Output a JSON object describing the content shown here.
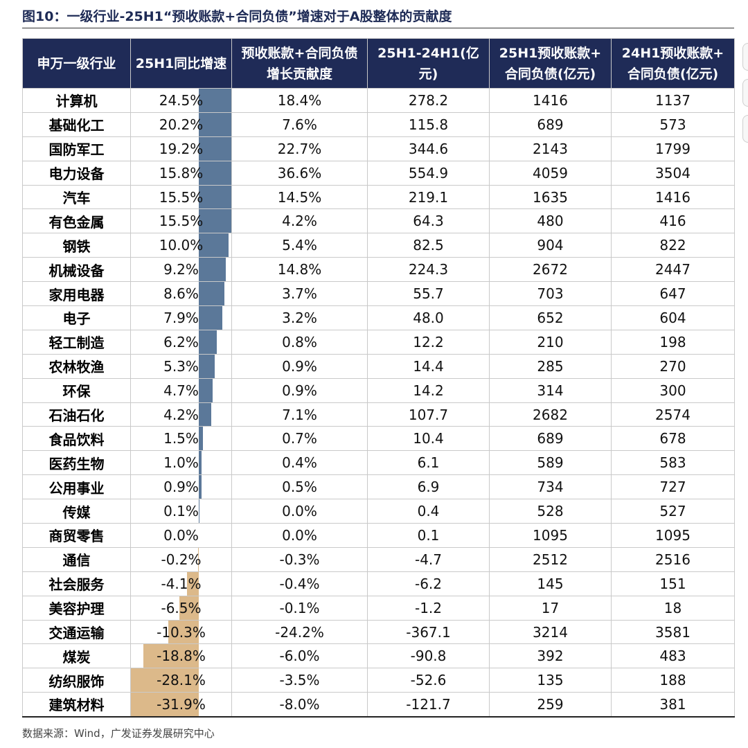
{
  "title": "图10：一级行业-25H1“预收账款+合同负债”增速对于A股整体的贡献度",
  "source": "数据来源：Wind，广发证券发展研究中心",
  "colors": {
    "header_bg": "#1f2b57",
    "bar_positive": "#5b7899",
    "bar_negative": "#dcb98a"
  },
  "headers": [
    [
      "申万一级行业"
    ],
    [
      "25H1同比增速"
    ],
    [
      "预收账款+合同负债",
      "增长贡献度"
    ],
    [
      "25H1-24H1(亿",
      "元)"
    ],
    [
      "25H1预收账款+",
      "合同负债(亿元)"
    ],
    [
      "24H1预收账款+",
      "合同负债(亿元)"
    ]
  ],
  "rows": [
    {
      "industry": "计算机",
      "growth": "24.5%",
      "contrib": "18.4%",
      "diff": "278.2",
      "v25": "1416",
      "v24": "1137"
    },
    {
      "industry": "基础化工",
      "growth": "20.2%",
      "contrib": "7.6%",
      "diff": "115.8",
      "v25": "689",
      "v24": "573"
    },
    {
      "industry": "国防军工",
      "growth": "19.2%",
      "contrib": "22.7%",
      "diff": "344.6",
      "v25": "2143",
      "v24": "1799"
    },
    {
      "industry": "电力设备",
      "growth": "15.8%",
      "contrib": "36.6%",
      "diff": "554.9",
      "v25": "4059",
      "v24": "3504"
    },
    {
      "industry": "汽车",
      "growth": "15.5%",
      "contrib": "14.5%",
      "diff": "219.1",
      "v25": "1635",
      "v24": "1416"
    },
    {
      "industry": "有色金属",
      "growth": "15.5%",
      "contrib": "4.2%",
      "diff": "64.3",
      "v25": "480",
      "v24": "416"
    },
    {
      "industry": "钢铁",
      "growth": "10.0%",
      "contrib": "5.4%",
      "diff": "82.5",
      "v25": "904",
      "v24": "822"
    },
    {
      "industry": "机械设备",
      "growth": "9.2%",
      "contrib": "14.8%",
      "diff": "224.3",
      "v25": "2672",
      "v24": "2447"
    },
    {
      "industry": "家用电器",
      "growth": "8.6%",
      "contrib": "3.7%",
      "diff": "55.7",
      "v25": "703",
      "v24": "647"
    },
    {
      "industry": "电子",
      "growth": "7.9%",
      "contrib": "3.2%",
      "diff": "48.0",
      "v25": "652",
      "v24": "604"
    },
    {
      "industry": "轻工制造",
      "growth": "6.2%",
      "contrib": "0.8%",
      "diff": "12.2",
      "v25": "210",
      "v24": "198"
    },
    {
      "industry": "农林牧渔",
      "growth": "5.3%",
      "contrib": "0.9%",
      "diff": "14.4",
      "v25": "285",
      "v24": "270"
    },
    {
      "industry": "环保",
      "growth": "4.7%",
      "contrib": "0.9%",
      "diff": "14.2",
      "v25": "314",
      "v24": "300"
    },
    {
      "industry": "石油石化",
      "growth": "4.2%",
      "contrib": "7.1%",
      "diff": "107.7",
      "v25": "2682",
      "v24": "2574"
    },
    {
      "industry": "食品饮料",
      "growth": "1.5%",
      "contrib": "0.7%",
      "diff": "10.4",
      "v25": "689",
      "v24": "678"
    },
    {
      "industry": "医药生物",
      "growth": "1.0%",
      "contrib": "0.4%",
      "diff": "6.1",
      "v25": "589",
      "v24": "583"
    },
    {
      "industry": "公用事业",
      "growth": "0.9%",
      "contrib": "0.5%",
      "diff": "6.9",
      "v25": "734",
      "v24": "727"
    },
    {
      "industry": "传媒",
      "growth": "0.1%",
      "contrib": "0.0%",
      "diff": "0.4",
      "v25": "528",
      "v24": "527"
    },
    {
      "industry": "商贸零售",
      "growth": "0.0%",
      "contrib": "0.0%",
      "diff": "0.1",
      "v25": "1095",
      "v24": "1095"
    },
    {
      "industry": "通信",
      "growth": "-0.2%",
      "contrib": "-0.3%",
      "diff": "-4.7",
      "v25": "2512",
      "v24": "2516"
    },
    {
      "industry": "社会服务",
      "growth": "-4.1%",
      "contrib": "-0.4%",
      "diff": "-6.2",
      "v25": "145",
      "v24": "151"
    },
    {
      "industry": "美容护理",
      "growth": "-6.5%",
      "contrib": "-0.1%",
      "diff": "-1.2",
      "v25": "17",
      "v24": "18"
    },
    {
      "industry": "交通运输",
      "growth": "-10.3%",
      "contrib": "-24.2%",
      "diff": "-367.1",
      "v25": "3214",
      "v24": "3581"
    },
    {
      "industry": "煤炭",
      "growth": "-18.8%",
      "contrib": "-6.0%",
      "diff": "-90.8",
      "v25": "392",
      "v24": "483"
    },
    {
      "industry": "纺织服饰",
      "growth": "-28.1%",
      "contrib": "-3.5%",
      "diff": "-52.6",
      "v25": "135",
      "v24": "188"
    },
    {
      "industry": "建筑材料",
      "growth": "-31.9%",
      "contrib": "-8.0%",
      "diff": "-121.7",
      "v25": "259",
      "v24": "381"
    }
  ]
}
